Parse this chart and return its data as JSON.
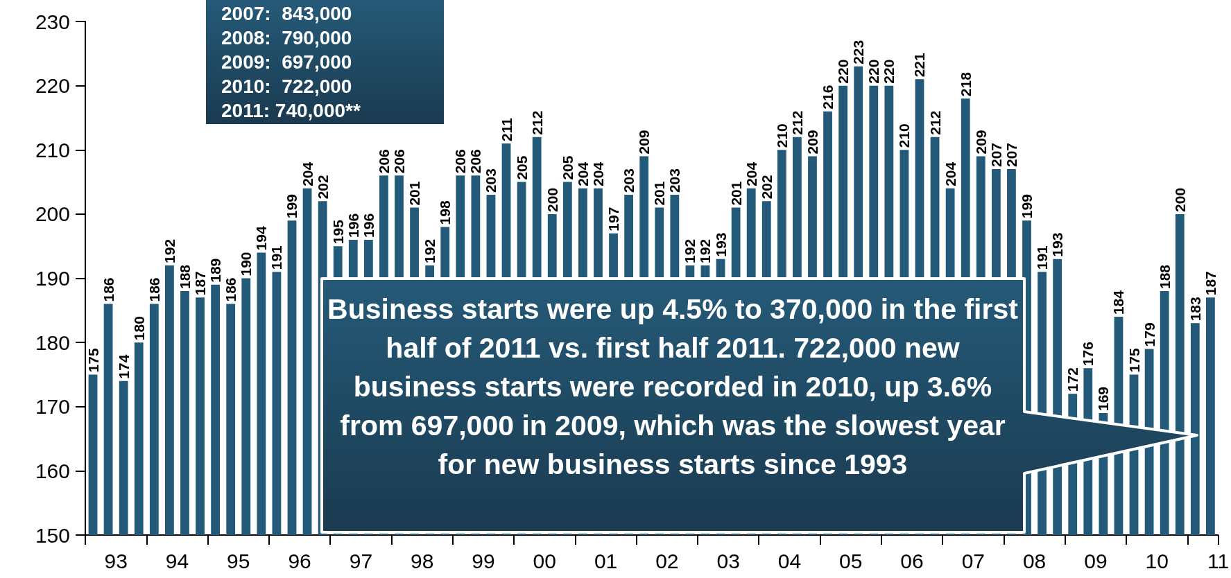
{
  "chart_data": {
    "type": "bar",
    "categories": [
      null,
      "93",
      null,
      null,
      null,
      "94",
      null,
      null,
      null,
      "95",
      null,
      null,
      null,
      "96",
      null,
      null,
      null,
      "97",
      null,
      null,
      null,
      "98",
      null,
      null,
      null,
      "99",
      null,
      null,
      null,
      "00",
      null,
      null,
      null,
      "01",
      null,
      null,
      null,
      "02",
      null,
      null,
      null,
      "03",
      null,
      null,
      null,
      "04",
      null,
      null,
      null,
      "05",
      null,
      null,
      null,
      "06",
      null,
      null,
      null,
      "07",
      null,
      null,
      null,
      "08",
      null,
      null,
      null,
      "09",
      null,
      null,
      null,
      "10",
      null,
      null,
      null,
      "11"
    ],
    "values": [
      175,
      186,
      174,
      180,
      186,
      192,
      188,
      187,
      189,
      186,
      190,
      194,
      191,
      199,
      204,
      202,
      195,
      196,
      196,
      206,
      206,
      201,
      192,
      198,
      206,
      206,
      203,
      211,
      205,
      212,
      200,
      205,
      204,
      204,
      197,
      203,
      209,
      201,
      203,
      192,
      192,
      193,
      201,
      204,
      202,
      210,
      212,
      209,
      216,
      220,
      223,
      220,
      220,
      210,
      221,
      212,
      204,
      218,
      209,
      207,
      207,
      199,
      191,
      193,
      172,
      176,
      169,
      184,
      175,
      179,
      188,
      200,
      183,
      187
    ],
    "color": "#235a7a",
    "ylim": [
      150,
      230
    ],
    "yticks": [
      150,
      160,
      170,
      180,
      190,
      200,
      210,
      220,
      230
    ],
    "grid": false,
    "data_labels": true,
    "annotations": [
      "Business starts were up 4.5% to 370,000 in the first half of 2011 vs. first half 2011. 722,000 new business starts were recorded in 2010, up 3.6% from 697,000 in 2009, which was the slowest year for new business starts since 1993",
      "2007:  843,000",
      "2008:  790,000",
      "2009:  697,000",
      "2010:  722,000",
      "2011: 740,000**"
    ]
  }
}
